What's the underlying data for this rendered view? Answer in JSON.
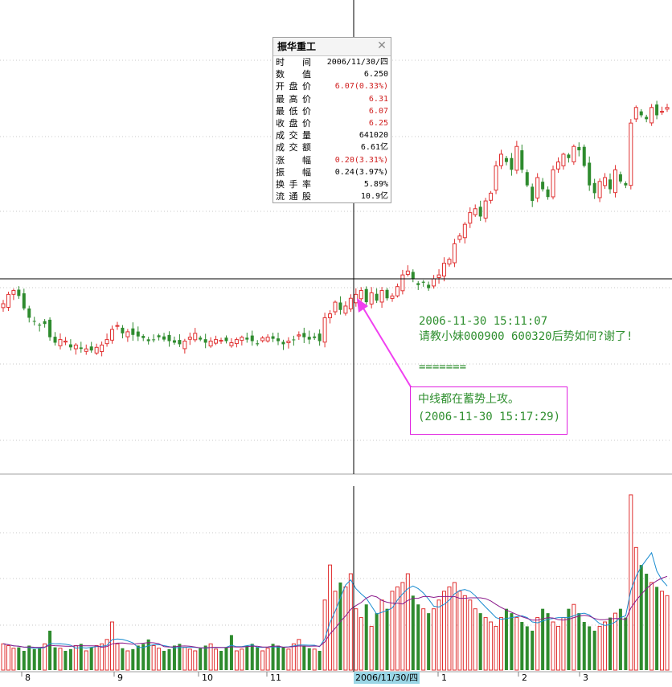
{
  "stock_name": "振华重工",
  "info_panel": {
    "close_icon": "close-icon",
    "rows": [
      {
        "label": "时间",
        "value": "2006/11/30/四",
        "color": "#000000"
      },
      {
        "label": "数值",
        "value": "6.250",
        "color": "#000000"
      },
      {
        "label": "开盘价",
        "value": "6.07(0.33%)",
        "color": "#d02020"
      },
      {
        "label": "最高价",
        "value": "6.31",
        "color": "#d02020"
      },
      {
        "label": "最低价",
        "value": "6.07",
        "color": "#d02020"
      },
      {
        "label": "收盘价",
        "value": "6.25",
        "color": "#d02020"
      },
      {
        "label": "成交量",
        "value": "641020",
        "color": "#000000"
      },
      {
        "label": "成交额",
        "value": "6.61亿",
        "color": "#000000"
      },
      {
        "label": "涨幅",
        "value": "0.20(3.31%)",
        "color": "#d02020"
      },
      {
        "label": "振幅",
        "value": "0.24(3.97%)",
        "color": "#000000"
      },
      {
        "label": "换手率",
        "value": "5.89%",
        "color": "#000000"
      },
      {
        "label": "流通股",
        "value": "10.9亿",
        "color": "#000000"
      }
    ]
  },
  "comment": {
    "line1": "2006-11-30 15:11:07",
    "line2": "请教小妹000900 600320后势如何?谢了!",
    "line3": "======="
  },
  "reply": {
    "line1": "中线都在蓄势上攻。",
    "line2": "(2006-11-30 15:17:29)"
  },
  "cursor_date_label": "2006/11/30/四",
  "x_axis_ticks": [
    "8",
    "9",
    "10",
    "11",
    "1",
    "2",
    "3"
  ],
  "colors": {
    "up": "#e03030",
    "down": "#2e8b2e",
    "ma_short": "#1a8cd0",
    "ma_long": "#8b1a8b",
    "arrow": "#f040f0",
    "text_green": "#2f8f2f"
  },
  "chart_data": [
    {
      "type": "candlestick",
      "title": "振华重工",
      "x_ticks": [
        "8",
        "9",
        "10",
        "11",
        "1",
        "2",
        "3"
      ],
      "cursor_date": "2006/11/30",
      "cursor_value": 6.25,
      "highlighted_bar": {
        "date": "2006/11/30",
        "open": 6.07,
        "high": 6.31,
        "low": 6.07,
        "close": 6.25
      },
      "closes_approx": [
        6.18,
        6.3,
        6.35,
        6.28,
        6.12,
        6.0,
        5.95,
        5.9,
        5.92,
        5.75,
        5.68,
        5.72,
        5.7,
        5.62,
        5.65,
        5.6,
        5.6,
        5.58,
        5.62,
        5.65,
        5.72,
        5.85,
        5.9,
        5.8,
        5.82,
        5.78,
        5.76,
        5.74,
        5.7,
        5.72,
        5.75,
        5.72,
        5.7,
        5.68,
        5.66,
        5.7,
        5.75,
        5.8,
        5.72,
        5.68,
        5.7,
        5.72,
        5.71,
        5.7,
        5.68,
        5.72,
        5.75,
        5.72,
        5.7,
        5.66,
        5.74,
        5.75,
        5.73,
        5.7,
        5.66,
        5.7,
        5.72,
        5.78,
        5.75,
        5.72,
        5.74,
        5.7,
        6.0,
        6.05,
        6.2,
        6.1,
        6.15,
        6.25,
        6.3,
        6.35,
        6.2,
        6.32,
        6.22,
        6.35,
        6.25,
        6.28,
        6.4,
        6.55,
        6.6,
        6.5,
        6.42,
        6.45,
        6.38,
        6.5,
        6.55,
        6.7,
        6.75,
        6.95,
        7.05,
        7.2,
        7.35,
        7.4,
        7.3,
        7.5,
        7.6,
        7.95,
        8.1,
        8.0,
        7.9,
        8.2,
        7.9,
        7.7,
        7.5,
        7.8,
        7.65,
        7.55,
        7.9,
        8.0,
        8.1,
        8.05,
        8.2,
        8.15,
        7.95,
        7.7,
        7.6,
        7.75,
        7.8,
        7.65,
        7.9,
        7.75,
        7.7,
        8.5,
        8.7,
        8.6,
        8.55,
        8.7,
        8.6,
        8.65,
        8.7
      ],
      "volumes_approx": [
        30,
        28,
        25,
        26,
        22,
        28,
        24,
        25,
        30,
        45,
        26,
        25,
        22,
        24,
        28,
        30,
        22,
        26,
        28,
        30,
        35,
        55,
        30,
        25,
        22,
        24,
        28,
        30,
        35,
        28,
        25,
        22,
        24,
        28,
        30,
        26,
        24,
        22,
        25,
        28,
        30,
        24,
        22,
        26,
        40,
        22,
        24,
        28,
        30,
        26,
        22,
        25,
        30,
        28,
        26,
        24,
        30,
        35,
        28,
        25,
        24,
        22,
        80,
        120,
        90,
        100,
        95,
        110,
        70,
        60,
        75,
        50,
        65,
        80,
        70,
        90,
        95,
        100,
        110,
        85,
        75,
        70,
        65,
        70,
        80,
        90,
        95,
        100,
        90,
        85,
        80,
        70,
        65,
        60,
        55,
        50,
        60,
        70,
        65,
        60,
        55,
        50,
        45,
        60,
        70,
        65,
        55,
        50,
        60,
        70,
        75,
        65,
        55,
        50,
        45,
        50,
        55,
        60,
        65,
        70,
        60,
        200,
        140,
        120,
        110,
        100,
        95,
        90,
        85
      ]
    }
  ]
}
